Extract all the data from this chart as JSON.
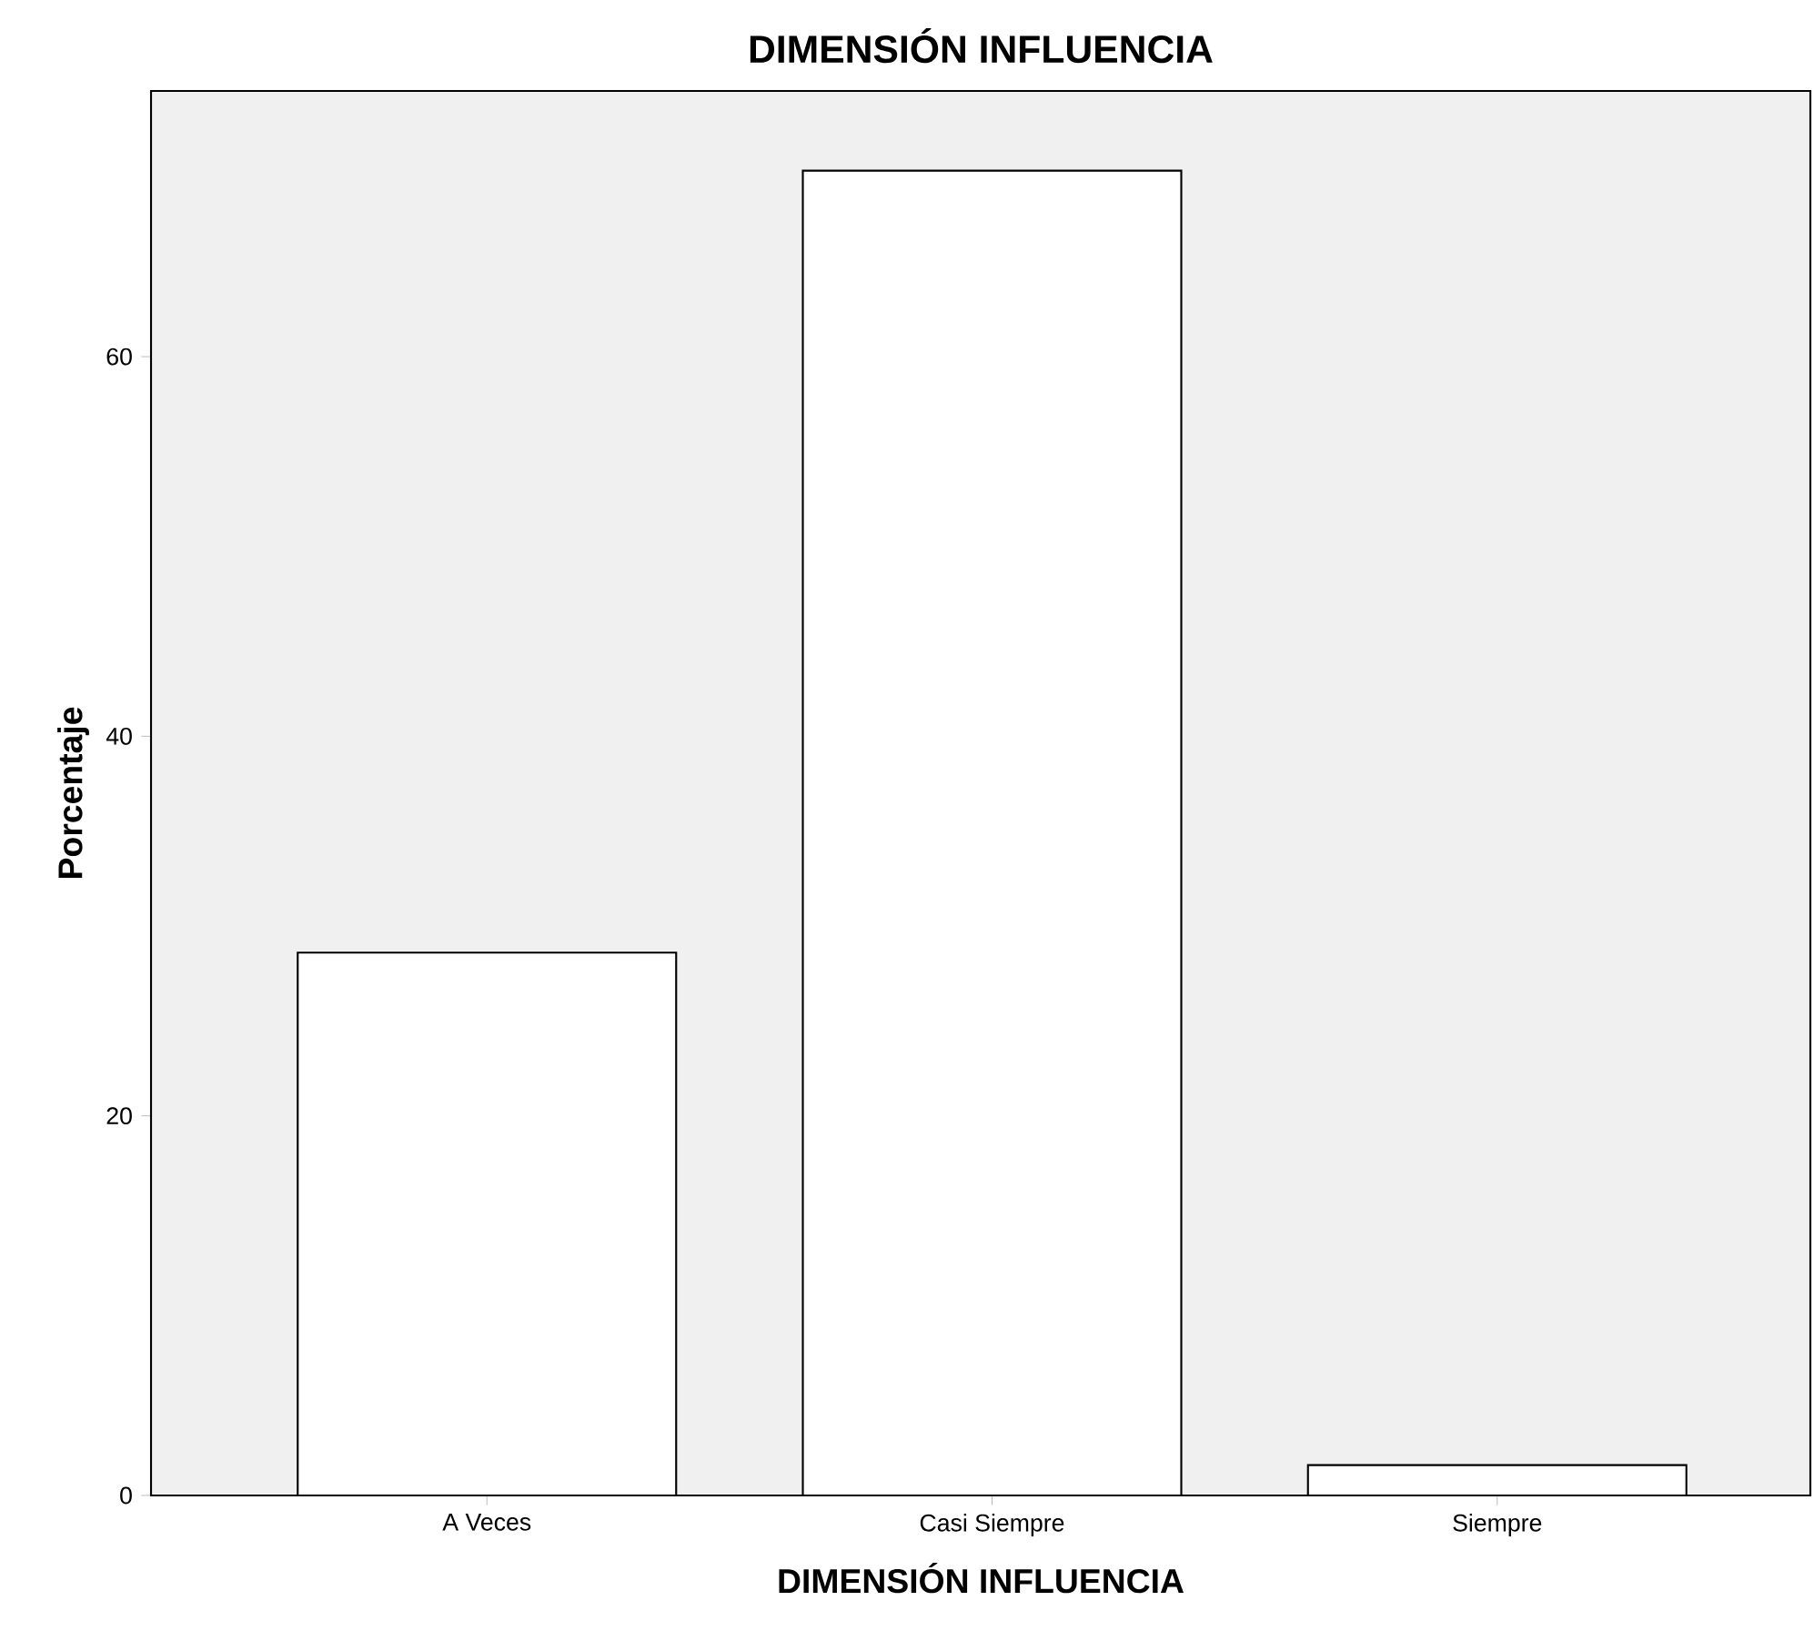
{
  "chart_data": {
    "type": "bar",
    "title": "DIMENSIÓN INFLUENCIA",
    "xlabel": "DIMENSIÓN INFLUENCIA",
    "ylabel": "Porcentaje",
    "categories": [
      "A Veces",
      "Casi Siempre",
      "Siempre"
    ],
    "values": [
      28.6,
      69.8,
      1.6
    ],
    "color": "#ffffff",
    "ylim": [
      0,
      74
    ],
    "yticks": [
      0,
      20,
      40,
      60
    ],
    "grid": false
  }
}
